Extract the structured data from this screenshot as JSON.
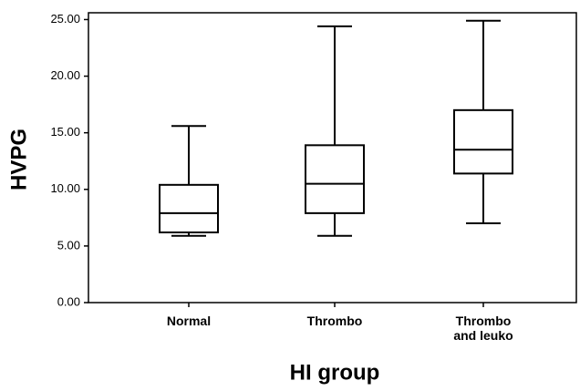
{
  "chart_data": {
    "type": "box",
    "x_label": "HI group",
    "y_label": "HVPG",
    "categories": [
      "Normal",
      "Thrombo",
      "Thrombo and leuko"
    ],
    "min": [
      5.9,
      5.9,
      7.0
    ],
    "q1": [
      6.2,
      7.9,
      11.4
    ],
    "median": [
      7.9,
      10.5,
      13.5
    ],
    "q3": [
      10.4,
      13.9,
      17.0
    ],
    "max": [
      15.6,
      24.4,
      24.9
    ],
    "color": "#000000",
    "ylim": [
      0,
      25.6
    ],
    "yticks": [
      {
        "value": 0,
        "label": "0.00"
      },
      {
        "value": 5,
        "label": "5.00"
      },
      {
        "value": 10,
        "label": "10.00"
      },
      {
        "value": 15,
        "label": "15.00"
      },
      {
        "value": 20,
        "label": "20.00"
      },
      {
        "value": 25,
        "label": "25.00"
      }
    ]
  }
}
